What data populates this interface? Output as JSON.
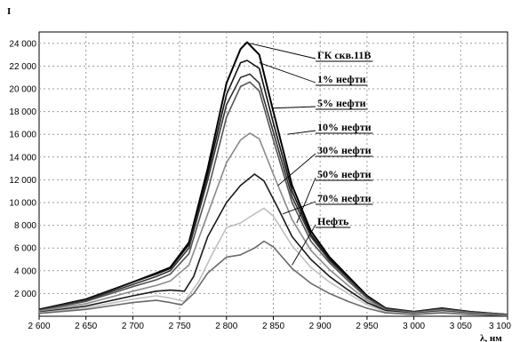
{
  "chart_data": {
    "type": "line",
    "ylabel": "I",
    "xlabel": "λ, нм",
    "xlim": [
      2600,
      3100
    ],
    "ylim": [
      0,
      25000
    ],
    "x_ticks": [
      "2 600",
      "2 650",
      "2 700",
      "2 750",
      "2 800",
      "2 850",
      "2 900",
      "2 950",
      "3 000",
      "3 050",
      "3 100"
    ],
    "y_ticks": [
      "2 000",
      "4 000",
      "6 000",
      "8 000",
      "10 000",
      "12 000",
      "14 000",
      "16 000",
      "18 000",
      "20 000",
      "22 000",
      "24 000"
    ],
    "grid": true,
    "legend": "right, labels with leader lines",
    "series": [
      {
        "name": "ГК скв.11В",
        "color": "#000000",
        "points": [
          [
            2600,
            600
          ],
          [
            2650,
            1500
          ],
          [
            2700,
            3000
          ],
          [
            2725,
            3800
          ],
          [
            2740,
            4300
          ],
          [
            2760,
            6500
          ],
          [
            2780,
            13000
          ],
          [
            2800,
            20500
          ],
          [
            2815,
            23500
          ],
          [
            2822,
            24100
          ],
          [
            2835,
            23000
          ],
          [
            2850,
            18000
          ],
          [
            2870,
            11500
          ],
          [
            2890,
            7500
          ],
          [
            2910,
            5200
          ],
          [
            2930,
            3500
          ],
          [
            2950,
            1800
          ],
          [
            2970,
            700
          ],
          [
            3000,
            400
          ],
          [
            3030,
            700
          ],
          [
            3060,
            400
          ],
          [
            3100,
            150
          ]
        ]
      },
      {
        "name": "1% нефти",
        "color": "#111111",
        "points": [
          [
            2600,
            600
          ],
          [
            2650,
            1500
          ],
          [
            2700,
            3000
          ],
          [
            2725,
            3700
          ],
          [
            2740,
            4200
          ],
          [
            2760,
            6300
          ],
          [
            2780,
            12500
          ],
          [
            2800,
            19500
          ],
          [
            2815,
            22300
          ],
          [
            2822,
            22500
          ],
          [
            2835,
            21800
          ],
          [
            2850,
            17000
          ],
          [
            2870,
            11000
          ],
          [
            2890,
            7200
          ],
          [
            2910,
            5000
          ],
          [
            2930,
            3400
          ],
          [
            2950,
            1700
          ],
          [
            2970,
            700
          ],
          [
            3000,
            400
          ],
          [
            3030,
            700
          ],
          [
            3060,
            400
          ],
          [
            3100,
            150
          ]
        ]
      },
      {
        "name": "5% нефти",
        "color": "#333333",
        "points": [
          [
            2600,
            550
          ],
          [
            2650,
            1400
          ],
          [
            2700,
            2800
          ],
          [
            2725,
            3500
          ],
          [
            2740,
            4000
          ],
          [
            2760,
            6000
          ],
          [
            2780,
            12000
          ],
          [
            2800,
            18600
          ],
          [
            2815,
            21000
          ],
          [
            2825,
            21300
          ],
          [
            2835,
            20500
          ],
          [
            2850,
            16200
          ],
          [
            2870,
            10500
          ],
          [
            2890,
            7000
          ],
          [
            2910,
            4900
          ],
          [
            2930,
            3300
          ],
          [
            2950,
            1700
          ],
          [
            2970,
            650
          ],
          [
            3000,
            380
          ],
          [
            3030,
            650
          ],
          [
            3060,
            380
          ],
          [
            3100,
            150
          ]
        ]
      },
      {
        "name": "10% нефти",
        "color": "#555555",
        "points": [
          [
            2600,
            500
          ],
          [
            2650,
            1300
          ],
          [
            2700,
            2600
          ],
          [
            2725,
            3200
          ],
          [
            2740,
            3700
          ],
          [
            2760,
            5500
          ],
          [
            2780,
            11000
          ],
          [
            2800,
            17500
          ],
          [
            2815,
            20200
          ],
          [
            2825,
            20600
          ],
          [
            2835,
            19800
          ],
          [
            2850,
            15500
          ],
          [
            2870,
            10000
          ],
          [
            2890,
            6600
          ],
          [
            2910,
            4700
          ],
          [
            2930,
            3100
          ],
          [
            2950,
            1600
          ],
          [
            2970,
            600
          ],
          [
            3000,
            350
          ],
          [
            3030,
            600
          ],
          [
            3060,
            350
          ],
          [
            3100,
            150
          ]
        ]
      },
      {
        "name": "30% нефти",
        "color": "#8a8a8a",
        "points": [
          [
            2600,
            450
          ],
          [
            2650,
            1100
          ],
          [
            2700,
            2200
          ],
          [
            2725,
            2700
          ],
          [
            2740,
            3100
          ],
          [
            2760,
            4500
          ],
          [
            2780,
            9000
          ],
          [
            2800,
            13500
          ],
          [
            2815,
            15500
          ],
          [
            2825,
            16100
          ],
          [
            2835,
            15600
          ],
          [
            2850,
            12500
          ],
          [
            2870,
            8500
          ],
          [
            2890,
            5800
          ],
          [
            2910,
            4100
          ],
          [
            2930,
            2700
          ],
          [
            2950,
            1400
          ],
          [
            2970,
            550
          ],
          [
            3000,
            300
          ],
          [
            3030,
            550
          ],
          [
            3060,
            300
          ],
          [
            3100,
            120
          ]
        ]
      },
      {
        "name": "50% нефти",
        "color": "#1a1a1a",
        "points": [
          [
            2600,
            350
          ],
          [
            2650,
            900
          ],
          [
            2700,
            1800
          ],
          [
            2725,
            2200
          ],
          [
            2740,
            2300
          ],
          [
            2755,
            2200
          ],
          [
            2765,
            3500
          ],
          [
            2780,
            7000
          ],
          [
            2800,
            10000
          ],
          [
            2815,
            11500
          ],
          [
            2830,
            12500
          ],
          [
            2840,
            11900
          ],
          [
            2855,
            9500
          ],
          [
            2870,
            7000
          ],
          [
            2890,
            5000
          ],
          [
            2910,
            3500
          ],
          [
            2930,
            2300
          ],
          [
            2950,
            1200
          ],
          [
            2970,
            500
          ],
          [
            3000,
            250
          ],
          [
            3030,
            450
          ],
          [
            3060,
            250
          ],
          [
            3100,
            100
          ]
        ]
      },
      {
        "name": "70% нефти",
        "color": "#c0c0c0",
        "points": [
          [
            2600,
            300
          ],
          [
            2650,
            750
          ],
          [
            2700,
            1500
          ],
          [
            2725,
            1800
          ],
          [
            2740,
            1600
          ],
          [
            2755,
            1300
          ],
          [
            2770,
            3000
          ],
          [
            2785,
            5500
          ],
          [
            2800,
            7800
          ],
          [
            2815,
            8200
          ],
          [
            2830,
            9000
          ],
          [
            2840,
            9500
          ],
          [
            2850,
            8800
          ],
          [
            2870,
            6200
          ],
          [
            2890,
            4300
          ],
          [
            2910,
            3000
          ],
          [
            2930,
            2000
          ],
          [
            2950,
            1000
          ],
          [
            2970,
            400
          ],
          [
            3000,
            200
          ],
          [
            3030,
            400
          ],
          [
            3060,
            200
          ],
          [
            3100,
            80
          ]
        ]
      },
      {
        "name": "Нефть",
        "color": "#6a6a6a",
        "points": [
          [
            2600,
            250
          ],
          [
            2650,
            600
          ],
          [
            2700,
            1200
          ],
          [
            2725,
            1400
          ],
          [
            2740,
            1200
          ],
          [
            2752,
            1000
          ],
          [
            2765,
            2000
          ],
          [
            2780,
            3800
          ],
          [
            2800,
            5200
          ],
          [
            2815,
            5400
          ],
          [
            2830,
            6000
          ],
          [
            2840,
            6600
          ],
          [
            2850,
            6100
          ],
          [
            2870,
            4200
          ],
          [
            2890,
            2900
          ],
          [
            2910,
            2000
          ],
          [
            2930,
            1300
          ],
          [
            2950,
            700
          ],
          [
            2970,
            300
          ],
          [
            3000,
            150
          ],
          [
            3030,
            300
          ],
          [
            3060,
            150
          ],
          [
            3100,
            60
          ]
        ]
      }
    ]
  }
}
